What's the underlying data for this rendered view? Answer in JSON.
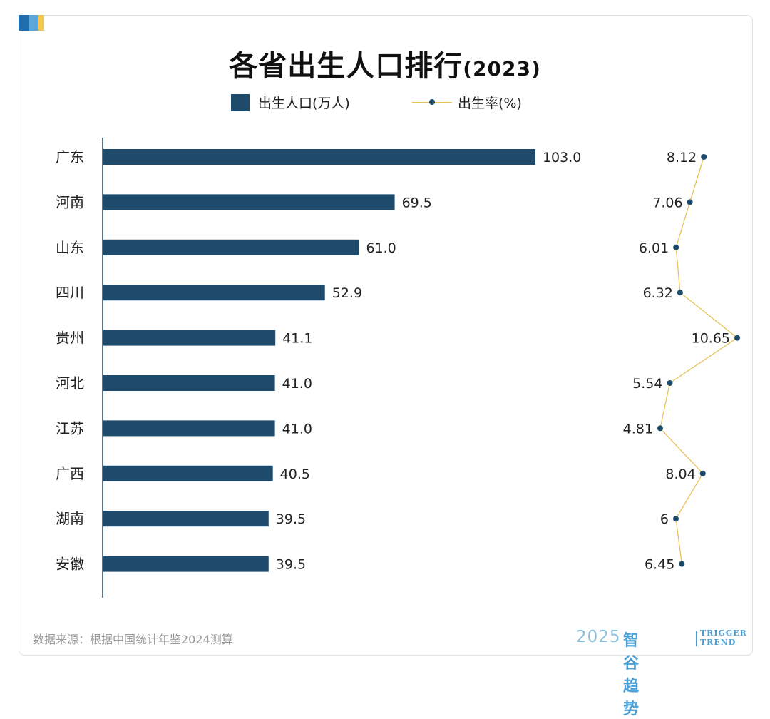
{
  "title": "各省出生人口排行",
  "title_year": "(2023)",
  "legend": {
    "bar_label": "出生人口(万人)",
    "line_label": "出生率(%)"
  },
  "source": "数据来源：根据中国统计年鉴2024测算",
  "brand": {
    "year": "2025",
    "name_cn": "智谷趋势",
    "name_en_1": "TRIGGER",
    "name_en_2": "TREND"
  },
  "colors": {
    "bar": "#1e4b6b",
    "line": "#e8c15a",
    "dot": "#1e4b6b",
    "accent_blue": "#4a9fd4",
    "accent_yellow": "#f2c94c"
  },
  "chart_data": {
    "type": "bar",
    "orientation": "horizontal",
    "categories": [
      "广东",
      "河南",
      "山东",
      "四川",
      "贵州",
      "河北",
      "江苏",
      "广西",
      "湖南",
      "安徽"
    ],
    "series": [
      {
        "name": "出生人口(万人)",
        "type": "bar",
        "values": [
          103.0,
          69.5,
          61.0,
          52.9,
          41.1,
          41.0,
          41.0,
          40.5,
          39.5,
          39.5
        ],
        "labels": [
          "103.0",
          "69.5",
          "61.0",
          "52.9",
          "41.1",
          "41.0",
          "41.0",
          "40.5",
          "39.5",
          "39.5"
        ]
      },
      {
        "name": "出生率(%)",
        "type": "line",
        "values": [
          8.12,
          7.06,
          6.01,
          6.32,
          10.65,
          5.54,
          4.81,
          8.04,
          6,
          6.45
        ],
        "labels": [
          "8.12",
          "7.06",
          "6.01",
          "6.32",
          "10.65",
          "5.54",
          "4.81",
          "8.04",
          "6",
          "6.45"
        ]
      }
    ],
    "legend_position": "top-center",
    "grid": false
  }
}
